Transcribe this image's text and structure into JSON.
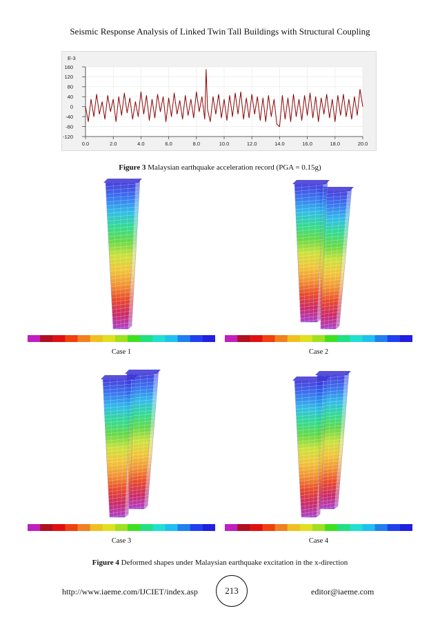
{
  "header": {
    "title": "Seismic Response Analysis of Linked Twin Tall Buildings with Structural Coupling"
  },
  "figure3": {
    "caption_label": "Figure 3",
    "caption_text": "Malaysian earthquake acceleration record (PGA = 0.15g)"
  },
  "chart_data": {
    "type": "line",
    "scale_label": "E-3",
    "x_ticks": [
      "0.0",
      "2.0",
      "4.0",
      "6.0",
      "8.0",
      "10.0",
      "12.0",
      "14.0",
      "16.0",
      "18.0",
      "20.0"
    ],
    "y_ticks": [
      "160",
      "120",
      "80",
      "40",
      "0",
      "-40",
      "-80",
      "-120"
    ],
    "xlim": [
      0,
      20
    ],
    "ylim": [
      -120,
      160
    ],
    "grid": true,
    "line_color": "#8b0000",
    "series": [
      {
        "x": [
          0.0,
          0.2,
          0.4,
          0.6,
          0.8,
          1.0,
          1.2,
          1.4,
          1.6,
          1.8,
          2.0,
          2.2,
          2.4,
          2.6,
          2.8,
          3.0,
          3.2,
          3.4,
          3.6,
          3.8,
          4.0,
          4.2,
          4.4,
          4.6,
          4.8,
          5.0,
          5.2,
          5.4,
          5.6,
          5.8,
          6.0,
          6.2,
          6.4,
          6.6,
          6.8,
          7.0,
          7.2,
          7.4,
          7.6,
          7.8,
          8.0,
          8.2,
          8.4,
          8.6,
          8.7,
          8.8,
          9.0,
          9.2,
          9.4,
          9.6,
          9.8,
          10.0,
          10.2,
          10.4,
          10.6,
          10.8,
          11.0,
          11.2,
          11.4,
          11.6,
          11.8,
          12.0,
          12.2,
          12.4,
          12.6,
          12.8,
          13.0,
          13.2,
          13.4,
          13.6,
          13.8,
          14.0,
          14.2,
          14.4,
          14.6,
          14.8,
          15.0,
          15.2,
          15.4,
          15.6,
          15.8,
          16.0,
          16.2,
          16.4,
          16.6,
          16.8,
          17.0,
          17.2,
          17.4,
          17.6,
          17.8,
          18.0,
          18.2,
          18.4,
          18.6,
          18.8,
          19.0,
          19.2,
          19.4,
          19.6,
          19.8,
          20.0
        ],
        "values": [
          0,
          -60,
          30,
          -40,
          50,
          -30,
          20,
          -50,
          45,
          -20,
          30,
          -60,
          40,
          -35,
          55,
          -25,
          35,
          -50,
          20,
          -40,
          60,
          -30,
          45,
          -55,
          30,
          -45,
          50,
          -20,
          40,
          -60,
          35,
          -40,
          55,
          -30,
          25,
          -50,
          45,
          -35,
          30,
          -45,
          60,
          -20,
          40,
          -50,
          150,
          -10,
          -60,
          40,
          -30,
          50,
          -45,
          30,
          -55,
          45,
          -40,
          55,
          -30,
          60,
          -50,
          35,
          -45,
          50,
          -30,
          40,
          -55,
          35,
          -60,
          45,
          -40,
          30,
          -70,
          -80,
          45,
          -50,
          35,
          -60,
          50,
          -40,
          30,
          -55,
          45,
          -35,
          55,
          -45,
          40,
          -60,
          35,
          -30,
          50,
          -45,
          30,
          -60,
          45,
          -35,
          50,
          -40,
          30,
          -50,
          40,
          -35,
          70,
          0
        ]
      }
    ]
  },
  "figure4": {
    "caption_label": "Figure 4",
    "caption_text": "Deformed shapes under Malaysian earthquake excitation in the x-direction",
    "cases": [
      {
        "label": "Case 1"
      },
      {
        "label": "Case 2"
      },
      {
        "label": "Case 3"
      },
      {
        "label": "Case 4"
      }
    ],
    "color_scale": [
      "#c020c0",
      "#b01020",
      "#e01010",
      "#f04010",
      "#f08020",
      "#f0c020",
      "#e0e020",
      "#a0e020",
      "#40e020",
      "#20e080",
      "#20e0d0",
      "#20c0f0",
      "#2080f0",
      "#2040f0",
      "#2020e0"
    ]
  },
  "footer": {
    "url": "http://www.iaeme.com/IJCIET/index.asp",
    "page_number": "213",
    "email": "editor@iaeme.com"
  }
}
